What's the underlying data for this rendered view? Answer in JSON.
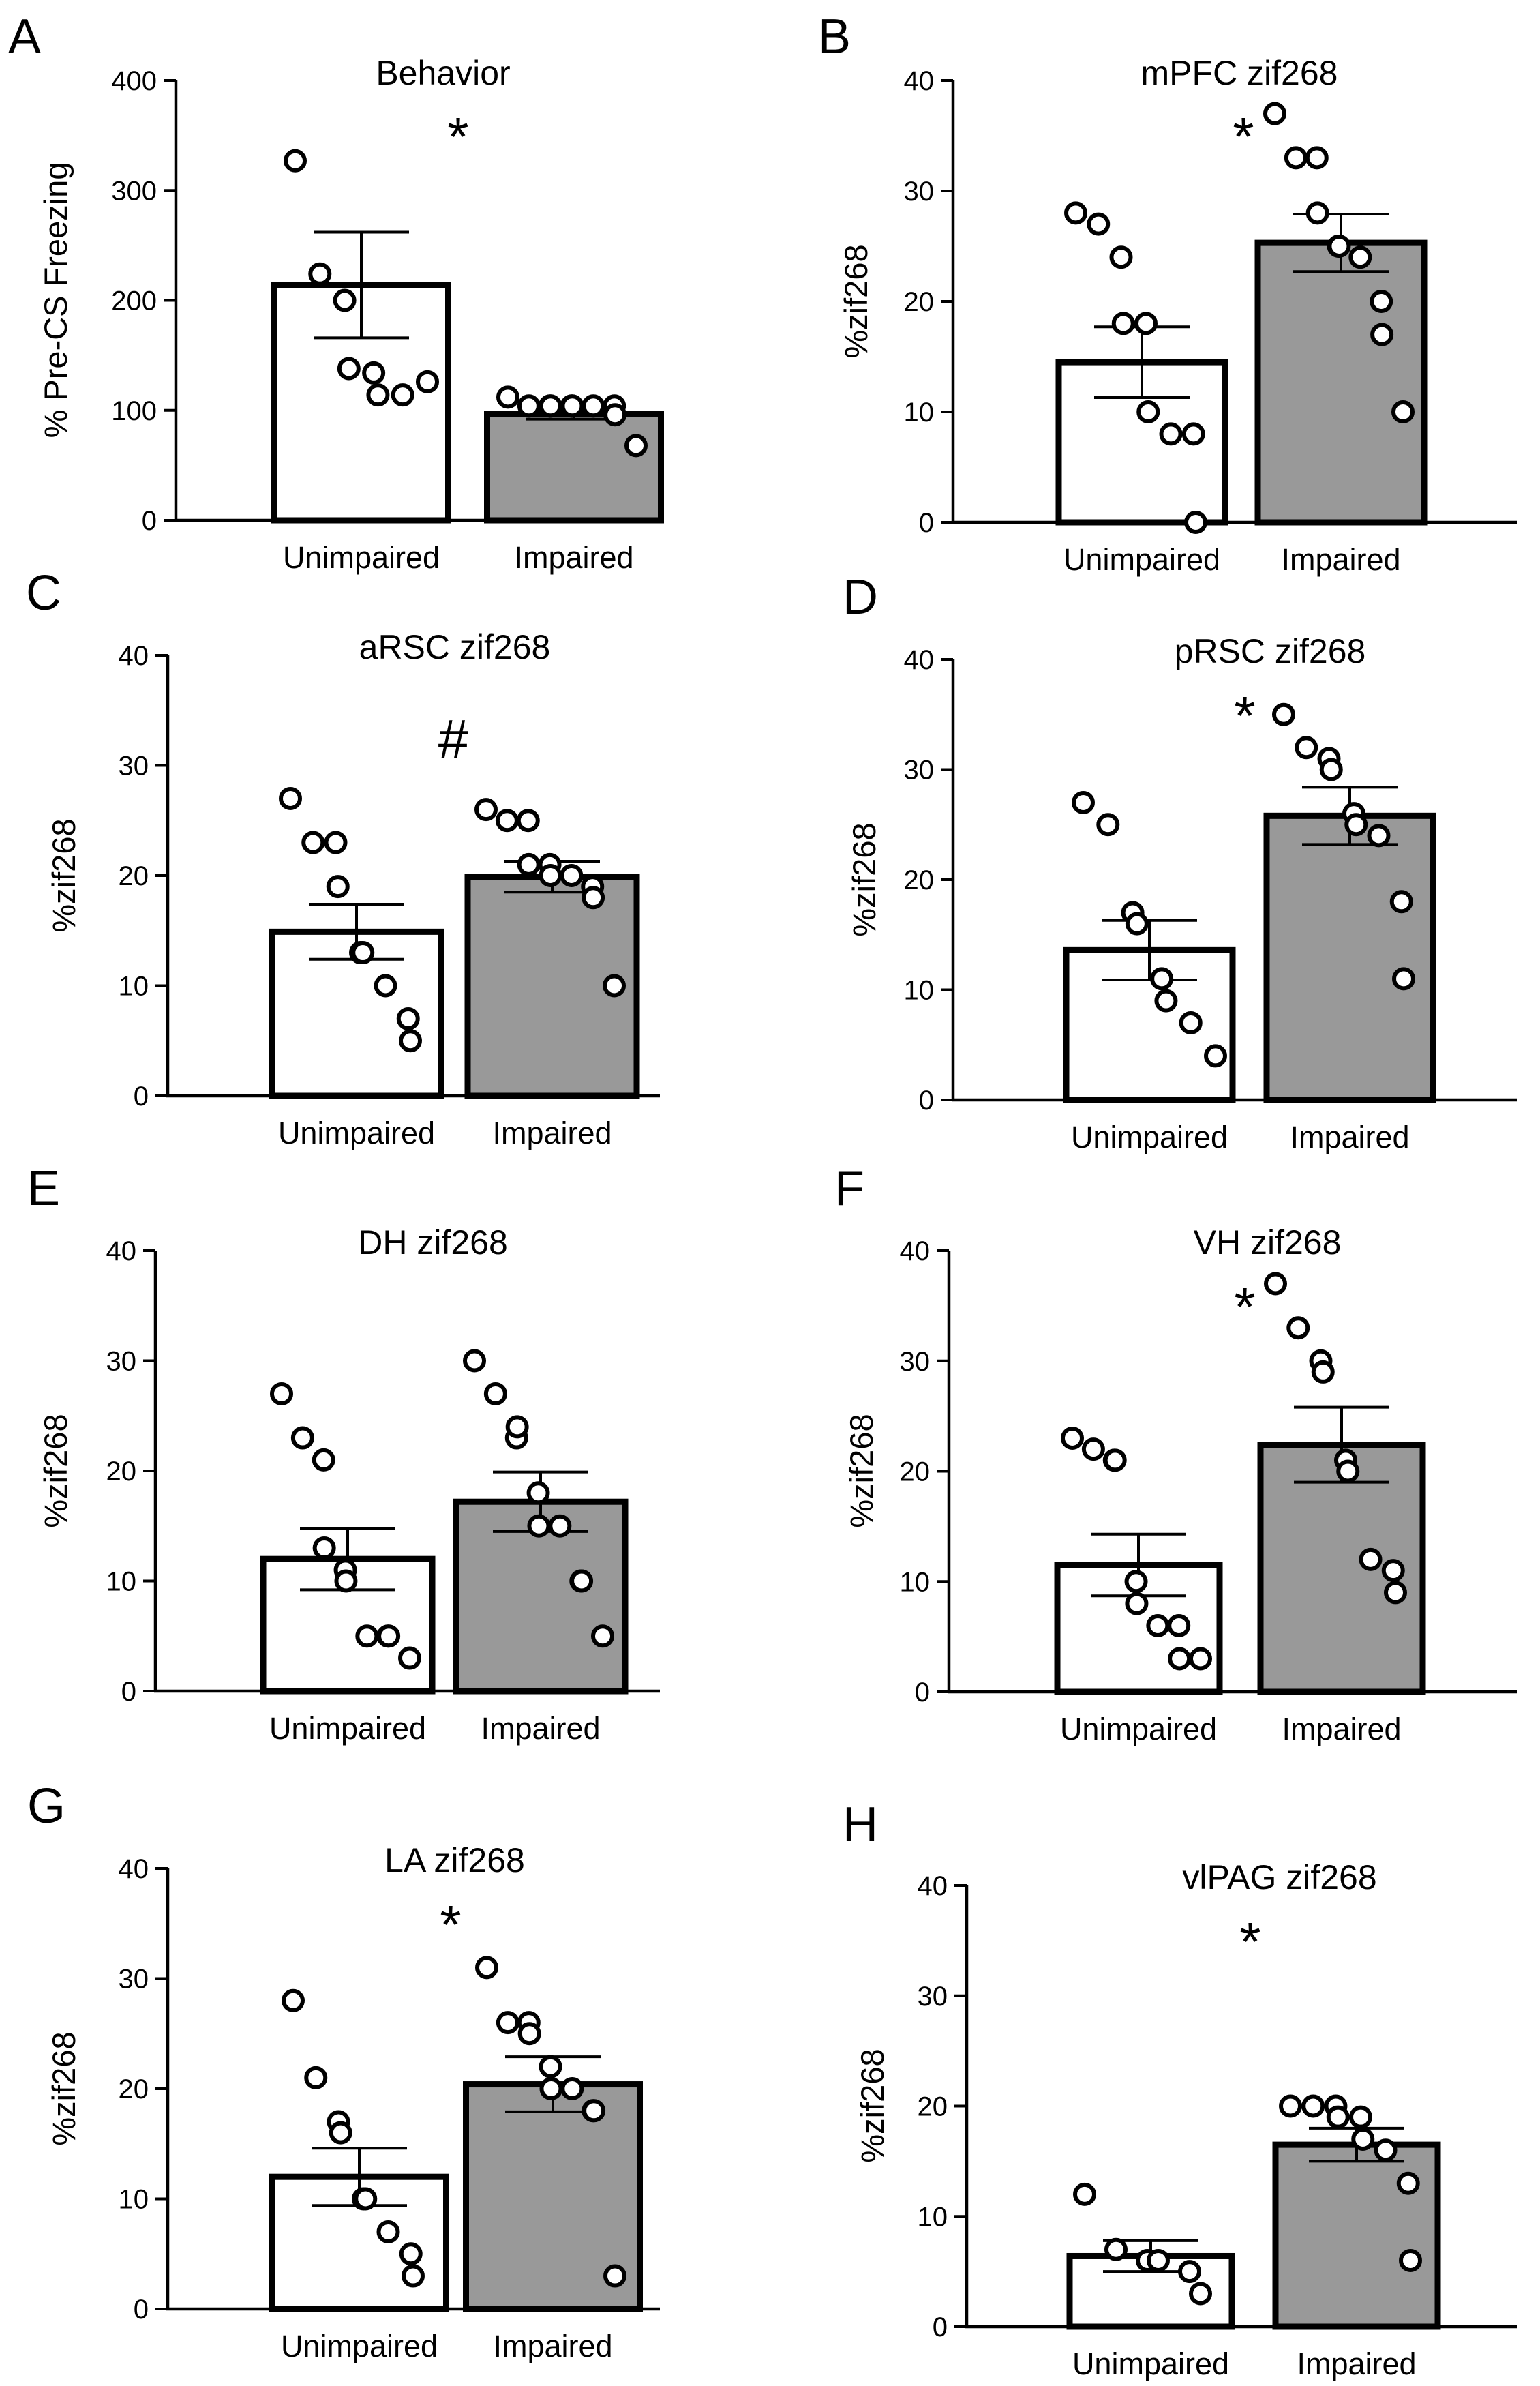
{
  "colors": {
    "unimpaired_bar": "#ffffff",
    "impaired_bar": "#999999",
    "stroke": "#000000"
  },
  "chart_data": [
    {
      "label": "A",
      "type": "bar",
      "title": "Behavior",
      "ylabel": "% Pre-CS Freezing",
      "ylim": [
        0,
        400
      ],
      "yticks": [
        "0",
        "100",
        "200",
        "300",
        "400"
      ],
      "categories": [
        "Unimpaired",
        "Impaired"
      ],
      "means": [
        214,
        97
      ],
      "sem": [
        48,
        5
      ],
      "significance": "*",
      "points": [
        [
          327,
          224,
          200,
          138,
          134,
          114,
          114,
          126
        ],
        [
          112,
          104,
          104,
          104,
          104,
          104,
          104,
          104,
          96,
          68
        ]
      ]
    },
    {
      "label": "B",
      "type": "bar",
      "title": "mPFC zif268",
      "ylabel": "%zif268",
      "ylim": [
        0,
        40
      ],
      "yticks": [
        "0",
        "10",
        "20",
        "30",
        "40"
      ],
      "categories": [
        "Unimpaired",
        "Impaired"
      ],
      "means": [
        14.5,
        25.3
      ],
      "sem": [
        3.2,
        2.6
      ],
      "significance": "*",
      "points": [
        [
          28,
          27,
          24,
          18,
          18,
          10,
          8,
          8,
          0
        ],
        [
          37,
          33,
          33,
          28,
          25,
          25,
          24,
          20,
          17,
          10
        ]
      ]
    },
    {
      "label": "C",
      "type": "bar",
      "title": "aRSC zif268",
      "ylabel": "%zif268",
      "ylim": [
        0,
        40
      ],
      "yticks": [
        "0",
        "10",
        "20",
        "30",
        "40"
      ],
      "categories": [
        "Unimpaired",
        "Impaired"
      ],
      "means": [
        14.9,
        19.9
      ],
      "sem": [
        2.5,
        1.4
      ],
      "significance": "#",
      "points": [
        [
          27,
          23,
          23,
          19,
          13,
          13,
          10,
          7,
          5
        ],
        [
          26,
          25,
          25,
          21,
          21,
          20,
          20,
          19,
          18,
          10
        ]
      ]
    },
    {
      "label": "D",
      "type": "bar",
      "title": "pRSC zif268",
      "ylabel": "%zif268",
      "ylim": [
        0,
        40
      ],
      "yticks": [
        "0",
        "10",
        "20",
        "30",
        "40"
      ],
      "categories": [
        "Unimpaired",
        "Impaired"
      ],
      "means": [
        13.6,
        25.8
      ],
      "sem": [
        2.7,
        2.6
      ],
      "significance": "*",
      "points": [
        [
          27,
          25,
          17,
          16,
          11,
          9,
          7,
          4
        ],
        [
          35,
          32,
          31,
          30,
          26,
          25,
          24,
          18,
          11
        ]
      ]
    },
    {
      "label": "E",
      "type": "bar",
      "title": "DH zif268",
      "ylabel": "%zif268",
      "ylim": [
        0,
        40
      ],
      "yticks": [
        "0",
        "10",
        "20",
        "30",
        "40"
      ],
      "categories": [
        "Unimpaired",
        "Impaired"
      ],
      "means": [
        12,
        17.2
      ],
      "sem": [
        2.8,
        2.7
      ],
      "significance": "",
      "points": [
        [
          27,
          23,
          21,
          13,
          11,
          10,
          5,
          5,
          5,
          3
        ],
        [
          30,
          27,
          23,
          24,
          18,
          15,
          15,
          10,
          10,
          5
        ]
      ]
    },
    {
      "label": "F",
      "type": "bar",
      "title": "VH zif268",
      "ylabel": "%zif268",
      "ylim": [
        0,
        40
      ],
      "yticks": [
        "0",
        "10",
        "20",
        "30",
        "40"
      ],
      "categories": [
        "Unimpaired",
        "Impaired"
      ],
      "means": [
        11.5,
        22.4
      ],
      "sem": [
        2.8,
        3.4
      ],
      "significance": "*",
      "points": [
        [
          23,
          22,
          21,
          21,
          10,
          8,
          6,
          6,
          3,
          3
        ],
        [
          37,
          33,
          30,
          29,
          21,
          20,
          12,
          11,
          9
        ]
      ]
    },
    {
      "label": "G",
      "type": "bar",
      "title": "LA zif268",
      "ylabel": "%zif268",
      "ylim": [
        0,
        40
      ],
      "yticks": [
        "0",
        "10",
        "20",
        "30",
        "40"
      ],
      "categories": [
        "Unimpaired",
        "Impaired"
      ],
      "means": [
        12,
        20.4
      ],
      "sem": [
        2.6,
        2.5
      ],
      "significance": "*",
      "points": [
        [
          28,
          21,
          17,
          16,
          10,
          10,
          7,
          5,
          3
        ],
        [
          31,
          26,
          26,
          25,
          22,
          20,
          20,
          18,
          18,
          3
        ]
      ]
    },
    {
      "label": "H",
      "type": "bar",
      "title": "vlPAG zif268",
      "ylabel": "%zif268",
      "ylim": [
        0,
        40
      ],
      "yticks": [
        "0",
        "10",
        "20",
        "30",
        "40"
      ],
      "categories": [
        "Unimpaired",
        "Impaired"
      ],
      "means": [
        6.4,
        16.5
      ],
      "sem": [
        1.4,
        1.5
      ],
      "significance": "*",
      "points": [
        [
          12,
          7,
          6,
          6,
          5,
          3
        ],
        [
          20,
          20,
          20,
          19,
          19,
          17,
          16,
          13,
          6
        ]
      ]
    }
  ]
}
